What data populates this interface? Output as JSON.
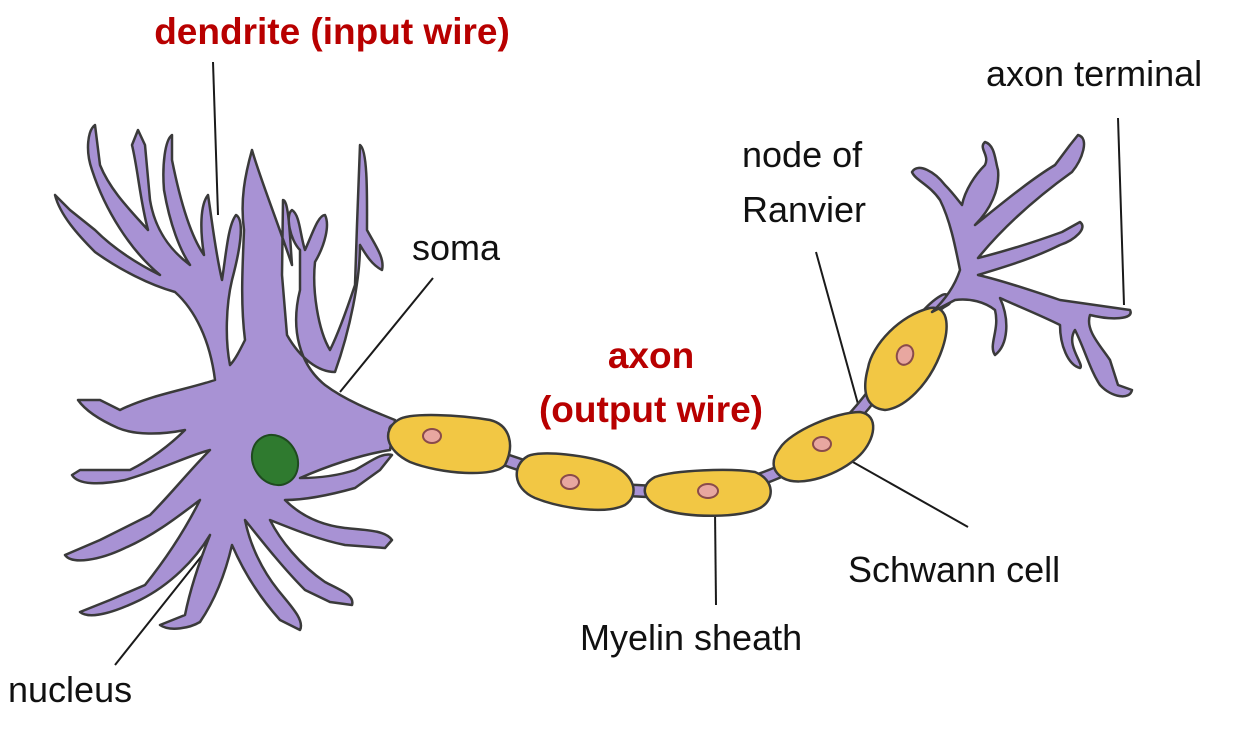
{
  "labels": {
    "dendrite": "dendrite (input wire)",
    "soma": "soma",
    "nucleus": "nucleus",
    "axon_line1": "axon",
    "axon_line2": "(output wire)",
    "node_line1": "node of",
    "node_line2": "Ranvier",
    "axon_terminal": "axon terminal",
    "schwann_cell": "Schwann cell",
    "myelin_sheath": "Myelin sheath"
  },
  "colors": {
    "neuron": "#a892d4",
    "neuron_outline": "#3a3a3a",
    "nucleus": "#2f7a2f",
    "myelin": "#f2c744",
    "schwann_nucleus": "#e8a7a0",
    "accent_text": "#b80000",
    "text": "#111111"
  }
}
